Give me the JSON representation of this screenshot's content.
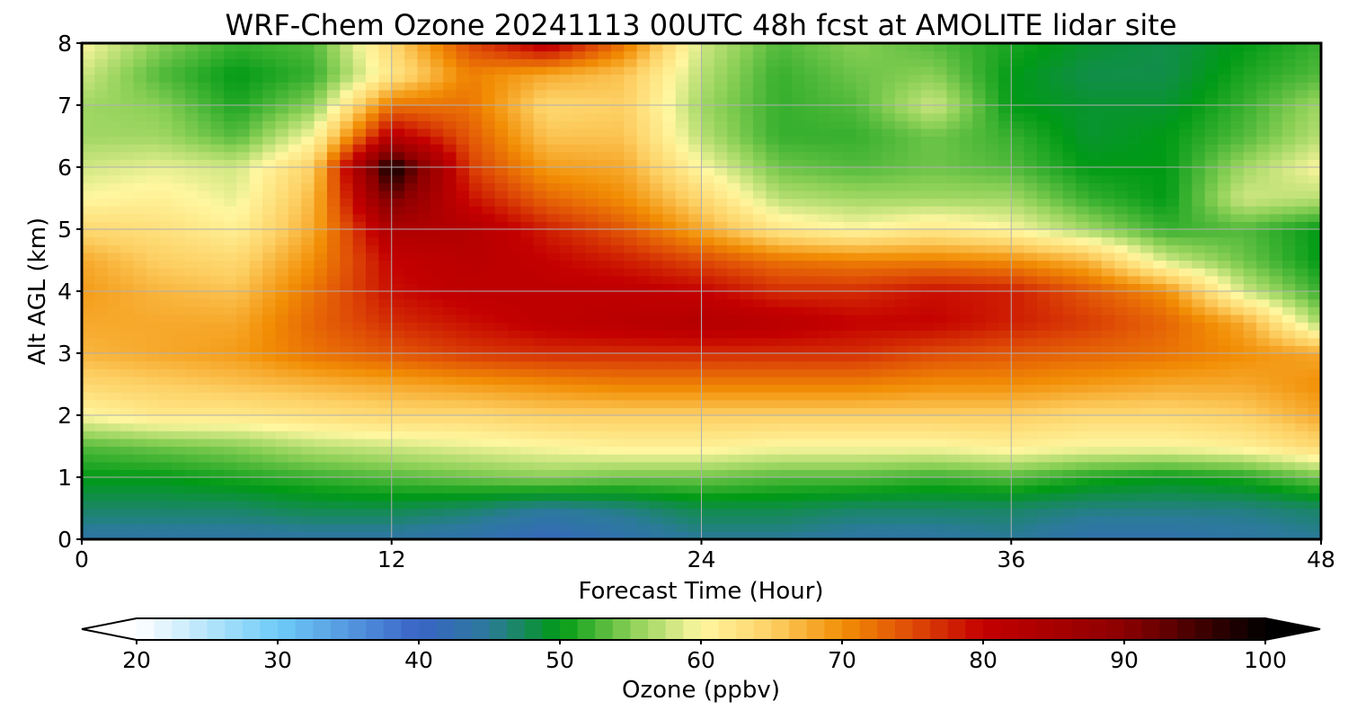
{
  "chart_data": {
    "type": "heatmap",
    "title": "WRF-Chem Ozone  20241113 00UTC 48h fcst at AMOLITE lidar site",
    "xlabel": "Forecast Time (Hour)",
    "ylabel": "Alt AGL (km)",
    "xlim": [
      0,
      48
    ],
    "ylim": [
      0,
      8
    ],
    "xticks": [
      0,
      12,
      24,
      36,
      48
    ],
    "yticks": [
      0,
      1,
      2,
      3,
      4,
      5,
      6,
      7,
      8
    ],
    "xtick_labels": [
      "0",
      "12",
      "24",
      "36",
      "48"
    ],
    "ytick_labels": [
      "0",
      "1",
      "2",
      "3",
      "4",
      "5",
      "6",
      "7",
      "8"
    ],
    "grid": true,
    "x": [
      0,
      3,
      6,
      9,
      12,
      15,
      18,
      21,
      24,
      27,
      30,
      33,
      36,
      39,
      42,
      45,
      48
    ],
    "y": [
      0,
      0.5,
      1,
      1.5,
      2,
      2.5,
      3,
      3.5,
      4,
      4.5,
      5,
      5.5,
      6,
      6.5,
      7,
      7.5,
      8
    ],
    "z": [
      [
        44,
        44,
        44,
        44,
        44,
        43,
        41,
        43,
        45,
        45,
        44,
        44,
        45,
        43,
        43,
        44,
        45
      ],
      [
        47,
        47,
        47,
        48,
        48,
        47,
        45,
        46,
        48,
        48,
        47,
        47,
        47,
        46,
        46,
        46,
        47
      ],
      [
        50,
        50,
        51,
        52,
        53,
        54,
        55,
        54,
        54,
        53,
        53,
        52,
        53,
        51,
        50,
        51,
        54
      ],
      [
        53,
        54,
        55,
        57,
        58,
        59,
        60,
        61,
        61,
        60,
        60,
        60,
        61,
        60,
        60,
        61,
        64
      ],
      [
        60,
        62,
        62,
        63,
        64,
        64,
        65,
        65,
        65,
        65,
        65,
        65,
        65,
        64,
        64,
        65,
        68
      ],
      [
        64,
        65,
        66,
        67,
        68,
        69,
        70,
        71,
        71,
        71,
        71,
        70,
        70,
        69,
        68,
        68,
        70
      ],
      [
        67,
        68,
        69,
        72,
        74,
        76,
        77,
        77,
        77,
        77,
        77,
        75,
        74,
        73,
        72,
        70,
        68
      ],
      [
        68,
        68,
        68,
        73,
        77,
        79,
        81,
        82,
        83,
        82,
        80,
        80,
        78,
        76,
        73,
        68,
        56
      ],
      [
        69,
        67,
        66,
        72,
        79,
        81,
        81,
        81,
        80,
        77,
        77,
        79,
        78,
        74,
        70,
        58,
        52
      ],
      [
        68,
        65,
        64,
        70,
        80,
        82,
        80,
        78,
        75,
        72,
        71,
        71,
        70,
        67,
        58,
        54,
        50
      ],
      [
        64,
        63,
        61,
        68,
        84,
        83,
        78,
        74,
        68,
        62,
        60,
        62,
        60,
        56,
        52,
        53,
        50
      ],
      [
        60,
        61,
        59,
        67,
        92,
        79,
        73,
        70,
        64,
        57,
        56,
        56,
        56,
        52,
        50,
        58,
        57
      ],
      [
        58,
        59,
        58,
        65,
        100,
        76,
        69,
        68,
        60,
        54,
        53,
        54,
        53,
        50,
        50,
        56,
        60
      ],
      [
        56,
        56,
        53,
        60,
        82,
        74,
        66,
        66,
        57,
        52,
        52,
        54,
        52,
        49,
        50,
        53,
        57
      ],
      [
        56,
        55,
        51,
        55,
        72,
        72,
        64,
        65,
        56,
        52,
        53,
        58,
        50,
        49,
        49,
        52,
        56
      ],
      [
        58,
        53,
        50,
        52,
        62,
        71,
        68,
        66,
        57,
        52,
        54,
        55,
        50,
        48,
        48,
        51,
        53
      ],
      [
        60,
        55,
        52,
        53,
        64,
        75,
        82,
        72,
        58,
        53,
        55,
        53,
        51,
        49,
        48,
        50,
        52
      ]
    ],
    "colorbar": {
      "label": "Ozone  (ppbv)",
      "min": 20,
      "max": 100,
      "extend": "both",
      "ticks": [
        20,
        30,
        40,
        50,
        60,
        70,
        80,
        90,
        100
      ],
      "tick_labels": [
        "20",
        "30",
        "40",
        "50",
        "60",
        "70",
        "80",
        "90",
        "100"
      ],
      "colormap_stops": [
        [
          20,
          "#ffffff"
        ],
        [
          30,
          "#6ecbf8"
        ],
        [
          40,
          "#3a64c6"
        ],
        [
          45,
          "#2b7a9a"
        ],
        [
          50,
          "#009a15"
        ],
        [
          55,
          "#89cf55"
        ],
        [
          60,
          "#fff7a0"
        ],
        [
          65,
          "#fdd064"
        ],
        [
          70,
          "#f28e05"
        ],
        [
          75,
          "#de4a06"
        ],
        [
          80,
          "#c40000"
        ],
        [
          90,
          "#8b0000"
        ],
        [
          100,
          "#000000"
        ]
      ]
    }
  }
}
